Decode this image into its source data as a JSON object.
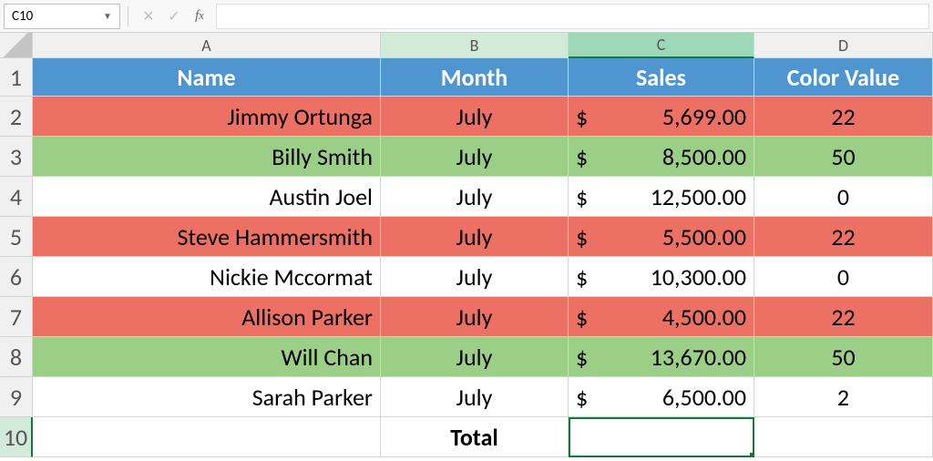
{
  "name_box": "C10",
  "formula_value": "",
  "columns": [
    "A",
    "B",
    "C",
    "D"
  ],
  "headers": [
    "Name",
    "Month",
    "Sales",
    "Color Value"
  ],
  "rows": [
    {
      "num": 2,
      "name": "Jimmy Ortunga",
      "month": "July",
      "sales": "5,699.00",
      "color_value": "22",
      "bg": "#ed7064"
    },
    {
      "num": 3,
      "name": "Billy Smith",
      "month": "July",
      "sales": "8,500.00",
      "color_value": "50",
      "bg": "#9bce86"
    },
    {
      "num": 4,
      "name": "Austin Joel",
      "month": "July",
      "sales": "12,500.00",
      "color_value": "0",
      "bg": "#ffffff"
    },
    {
      "num": 5,
      "name": "Steve Hammersmith",
      "month": "July",
      "sales": "5,500.00",
      "color_value": "22",
      "bg": "#ed7064"
    },
    {
      "num": 6,
      "name": "Nickie Mccormat",
      "month": "July",
      "sales": "10,300.00",
      "color_value": "0",
      "bg": "#ffffff"
    },
    {
      "num": 7,
      "name": "Allison Parker",
      "month": "July",
      "sales": "4,500.00",
      "color_value": "22",
      "bg": "#ed7064"
    },
    {
      "num": 8,
      "name": "Will Chan",
      "month": "July",
      "sales": "13,670.00",
      "color_value": "50",
      "bg": "#9bce86"
    },
    {
      "num": 9,
      "name": "Sarah Parker",
      "month": "July",
      "sales": "6,500.00",
      "color_value": "2",
      "bg": "#ffffff"
    }
  ],
  "total_label": "Total",
  "currency_symbol": "$",
  "colors": {
    "header_bg": "#4f95d0",
    "header_fg": "#ffffff",
    "red_row": "#ed7064",
    "green_row": "#9bce86",
    "selection": "#0f7b3e",
    "active_col": "#9fd8b9"
  },
  "selected_cell": {
    "col": "C",
    "row": 10
  }
}
